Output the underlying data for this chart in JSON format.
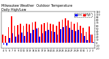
{
  "title": "Milwaukee Weather  Outdoor Temperature\nDaily High/Low",
  "title_fontsize": 3.5,
  "background_color": "#ffffff",
  "high_color": "#ff0000",
  "low_color": "#0000ff",
  "tick_fontsize": 2.5,
  "ylim": [
    -20,
    110
  ],
  "yticks": [
    -20,
    -10,
    0,
    10,
    20,
    30,
    40,
    50,
    60,
    70,
    80,
    90,
    100,
    110
  ],
  "highs": [
    30,
    25,
    55,
    95,
    60,
    62,
    68,
    60,
    68,
    65,
    72,
    75,
    52,
    65,
    70,
    72,
    68,
    65,
    60,
    75,
    82,
    88,
    80,
    75,
    68,
    72,
    60,
    52,
    38,
    58,
    28
  ],
  "lows": [
    -8,
    -10,
    18,
    35,
    22,
    28,
    36,
    25,
    38,
    35,
    45,
    50,
    22,
    35,
    40,
    45,
    42,
    38,
    30,
    48,
    55,
    60,
    52,
    45,
    42,
    45,
    35,
    25,
    10,
    28,
    2
  ],
  "x_labels": [
    "4",
    "5",
    "6",
    "7",
    "8",
    "9",
    "10",
    "11",
    "12",
    "13",
    "14",
    "15",
    "16",
    "17",
    "18",
    "19",
    "20",
    "21",
    "22",
    "23",
    "24",
    "25",
    "26",
    "27",
    "28",
    "29",
    "30",
    "31",
    "1",
    "2",
    "3"
  ],
  "legend_high": "High",
  "legend_low": "Low",
  "bar_width": 0.38
}
